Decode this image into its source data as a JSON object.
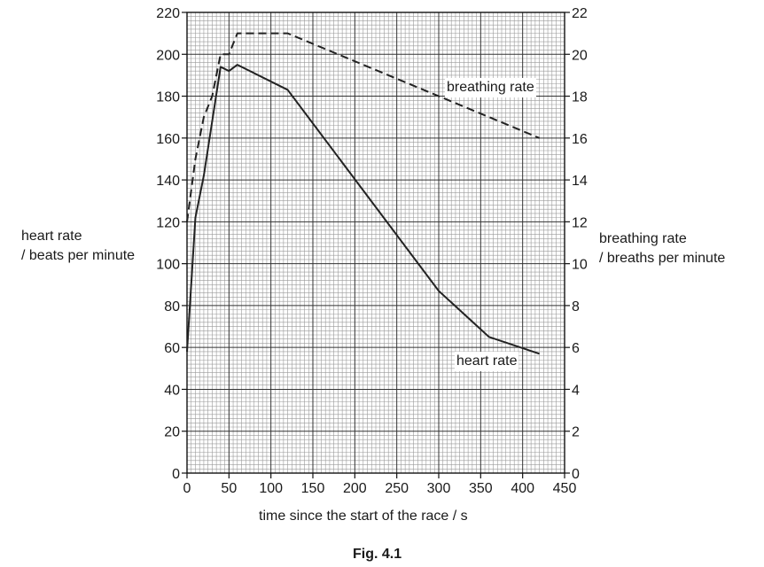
{
  "caption": "Fig. 4.1",
  "chart_data": {
    "type": "line",
    "xlabel": "time since the start of the race / s",
    "ylabel_left": [
      "heart rate",
      "/ beats per minute"
    ],
    "ylabel_right": [
      "breathing rate",
      "/ breaths per minute"
    ],
    "xlim": [
      0,
      450
    ],
    "ylim_left": [
      0,
      220
    ],
    "ylim_right": [
      0,
      22
    ],
    "xticks": [
      0,
      50,
      100,
      150,
      200,
      250,
      300,
      350,
      400,
      450
    ],
    "yticks_left": [
      0,
      20,
      40,
      60,
      80,
      100,
      120,
      140,
      160,
      180,
      200,
      220
    ],
    "yticks_right": [
      0,
      2,
      4,
      6,
      8,
      10,
      12,
      14,
      16,
      18,
      20,
      22
    ],
    "grid": true,
    "series": [
      {
        "name": "heart rate",
        "axis": "left",
        "style": "solid",
        "x": [
          0,
          10,
          20,
          40,
          50,
          60,
          120,
          300,
          360,
          420
        ],
        "y": [
          58,
          122,
          142,
          194,
          192,
          195,
          183,
          87,
          65,
          57
        ]
      },
      {
        "name": "breathing rate",
        "axis": "right",
        "style": "dashed",
        "x": [
          0,
          10,
          20,
          30,
          40,
          50,
          60,
          120,
          420
        ],
        "y": [
          12,
          15,
          17,
          18,
          20,
          20,
          21,
          21,
          16
        ]
      }
    ]
  }
}
